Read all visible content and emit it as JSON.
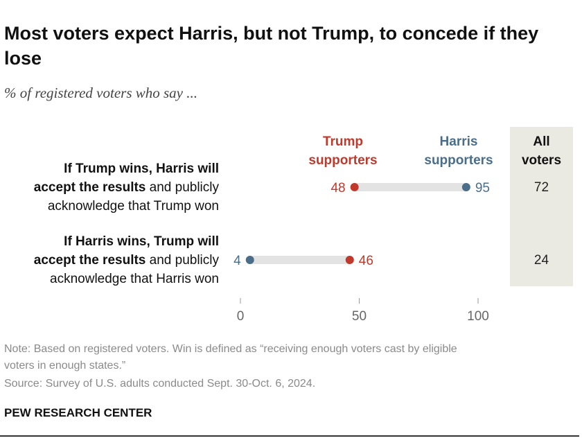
{
  "title": "Most voters expect Harris, but not Trump, to concede if they lose",
  "subtitle": "% of registered voters who say ...",
  "chart_data": {
    "type": "dot",
    "x_axis": {
      "ticks": [
        0,
        50,
        100
      ],
      "range": [
        0,
        100
      ]
    },
    "columns": {
      "trump": {
        "line1": "Trump",
        "line2": "supporters",
        "color": "#c0392b"
      },
      "harris": {
        "line1": "Harris",
        "line2": "supporters",
        "color": "#4a6e8a"
      },
      "all": {
        "line1": "All",
        "line2": "voters"
      }
    },
    "rows": [
      {
        "bold1": "If Trump wins, Harris will",
        "bold2": "accept the results",
        "rest2": " and publicly",
        "line3": "acknowledge that Trump won",
        "trump": 48,
        "harris": 95,
        "all": 72
      },
      {
        "bold1": "If Harris wins, Trump will",
        "bold2": "accept the results",
        "rest2": " and publicly",
        "line3": "acknowledge that Harris won",
        "trump": 46,
        "harris": 4,
        "all": 24
      }
    ]
  },
  "footer": {
    "note_line1": "Note: Based on registered voters. Win is defined as “receiving enough voters cast by eligible",
    "note_line2": "voters in enough states.”",
    "source": "Source: Survey of U.S. adults conducted Sept. 30-Oct. 6, 2024.",
    "brand": "PEW RESEARCH CENTER"
  }
}
